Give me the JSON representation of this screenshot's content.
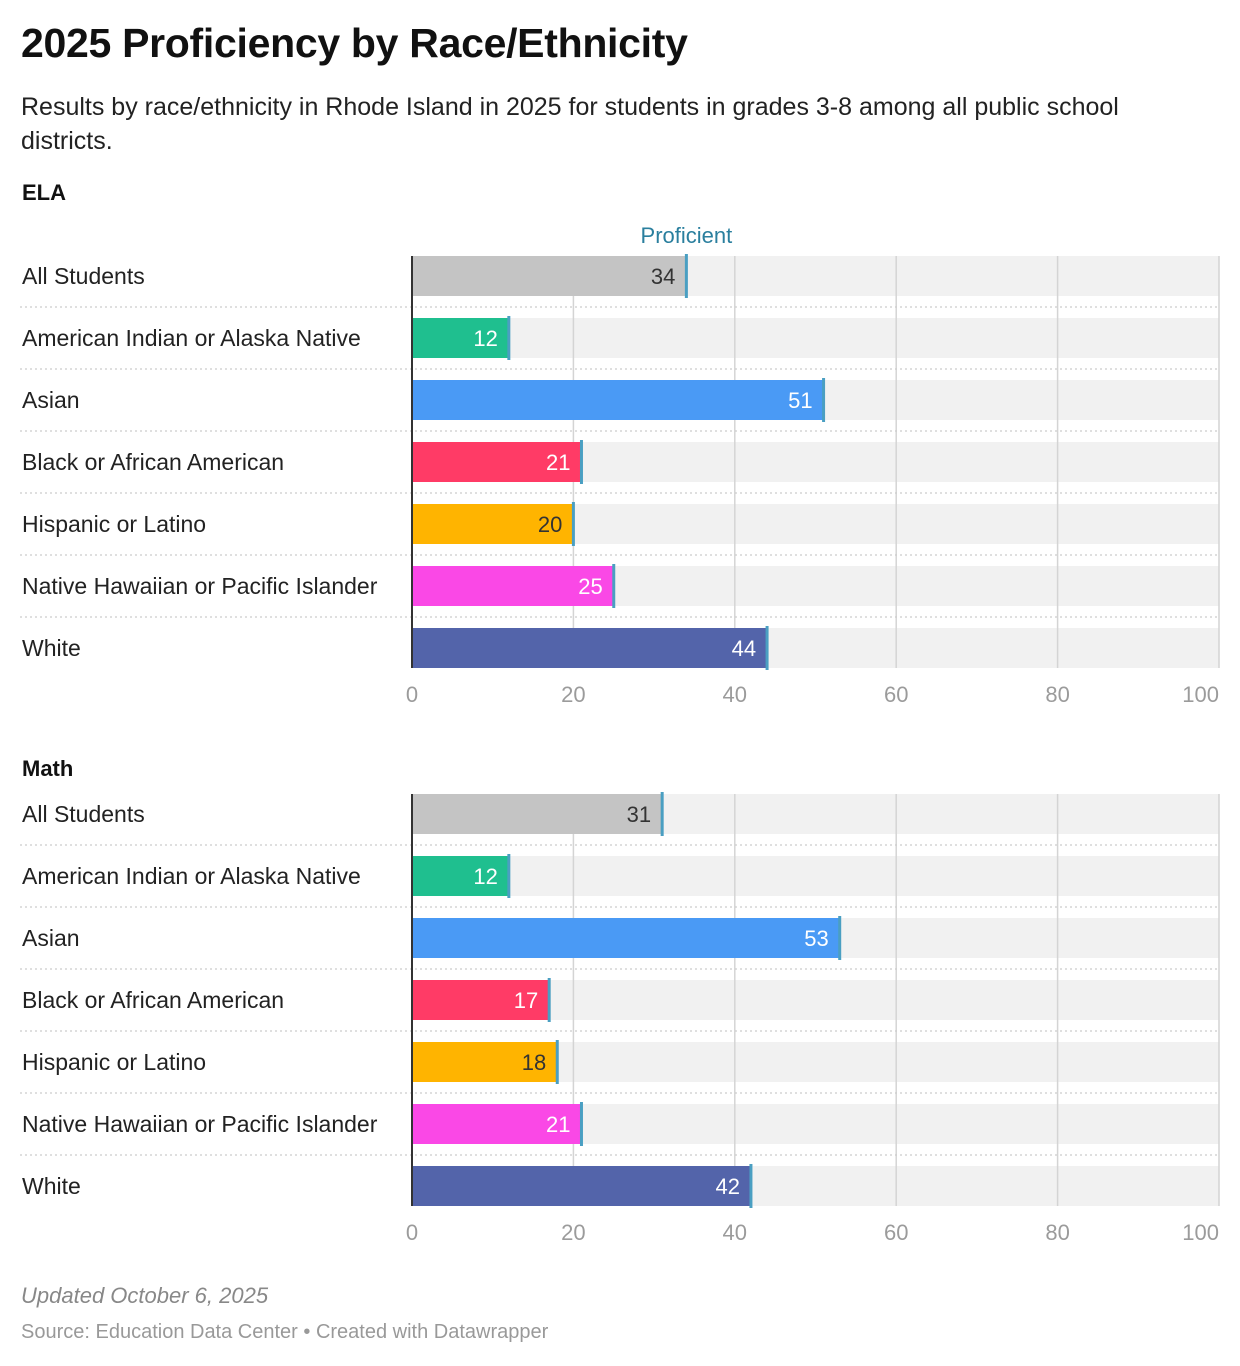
{
  "title": "2025 Proficiency by Race/Ethnicity",
  "subtitle": "Results by race/ethnicity in Rhode Island in 2025 for students in grades 3-8 among all public school districts.",
  "marker_label": "Proficient",
  "colors": {
    "marker": "#4a9fc2",
    "marker_text": "#2a7f9e",
    "track": "#f1f1f1",
    "grid": "#d4d4d4",
    "axis": "#333333",
    "separator": "#cccccc"
  },
  "chart_data": [
    {
      "type": "bar",
      "orientation": "horizontal",
      "title": "ELA",
      "xlim": [
        0,
        100
      ],
      "ticks": [
        0,
        20,
        40,
        60,
        80,
        100
      ],
      "categories": [
        "All Students",
        "American Indian or Alaska Native",
        "Asian",
        "Black or African American",
        "Hispanic or Latino",
        "Native Hawaiian or Pacific Islander",
        "White"
      ],
      "values": [
        34,
        12,
        51,
        21,
        20,
        25,
        44
      ],
      "bar_colors": [
        "#c4c4c4",
        "#1fbf8f",
        "#4a9af5",
        "#ff3b66",
        "#ffb400",
        "#fa48e6",
        "#5364aa"
      ],
      "label_colors": [
        "#333333",
        "#ffffff",
        "#ffffff",
        "#ffffff",
        "#333333",
        "#ffffff",
        "#ffffff"
      ],
      "grid": true
    },
    {
      "type": "bar",
      "orientation": "horizontal",
      "title": "Math",
      "xlim": [
        0,
        100
      ],
      "ticks": [
        0,
        20,
        40,
        60,
        80,
        100
      ],
      "categories": [
        "All Students",
        "American Indian or Alaska Native",
        "Asian",
        "Black or African American",
        "Hispanic or Latino",
        "Native Hawaiian or Pacific Islander",
        "White"
      ],
      "values": [
        31,
        12,
        53,
        17,
        18,
        21,
        42
      ],
      "bar_colors": [
        "#c4c4c4",
        "#1fbf8f",
        "#4a9af5",
        "#ff3b66",
        "#ffb400",
        "#fa48e6",
        "#5364aa"
      ],
      "label_colors": [
        "#333333",
        "#ffffff",
        "#ffffff",
        "#ffffff",
        "#333333",
        "#ffffff",
        "#ffffff"
      ],
      "grid": true
    }
  ],
  "footer": {
    "updated": "Updated October 6, 2025",
    "source": "Source: Education Data Center • Created with Datawrapper"
  }
}
